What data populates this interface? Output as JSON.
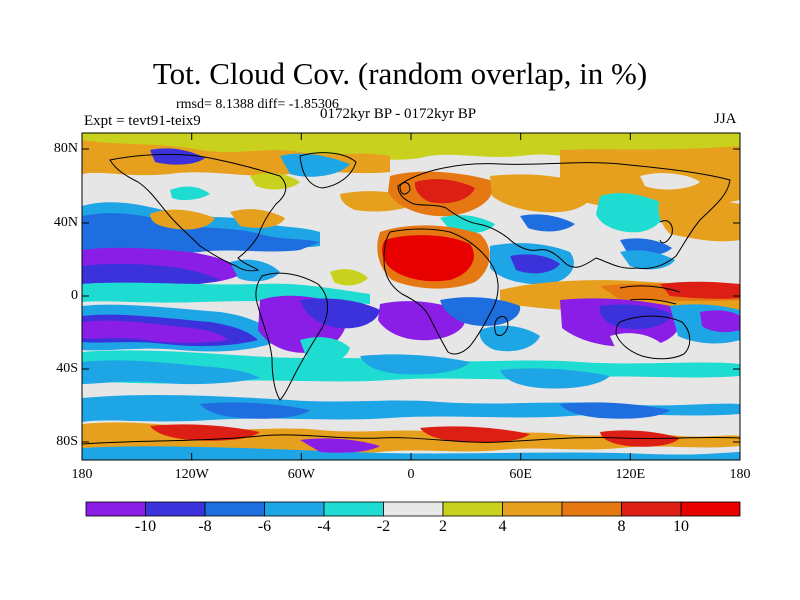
{
  "header": {
    "title": "Tot. Cloud Cov. (random overlap, in %)",
    "stats": "rmsd= 8.1388 diff= -1.85306",
    "experiment": "Expt = tevt91-teix9",
    "period": "0172kyr BP - 0172kyr BP",
    "season": "JJA"
  },
  "map": {
    "lat_ticks": [
      "80N",
      "40N",
      "0",
      "40S",
      "80S"
    ],
    "lon_ticks": [
      "180",
      "120W",
      "60W",
      "0",
      "60E",
      "120E",
      "180"
    ]
  },
  "colorbar": {
    "labels": [
      "-10",
      "-8",
      "-6",
      "-4",
      "-2",
      "2",
      "4",
      "8",
      "10"
    ],
    "colors": [
      "#8a1ee6",
      "#3c32dc",
      "#1e6ee0",
      "#1ea5e6",
      "#1edcd2",
      "#e8e8e8",
      "#c8d21e",
      "#e6a01e",
      "#e67814",
      "#dc1e14",
      "#e60000"
    ]
  },
  "fields": {
    "background": "#e6e6e6",
    "coastline": "#000000"
  }
}
